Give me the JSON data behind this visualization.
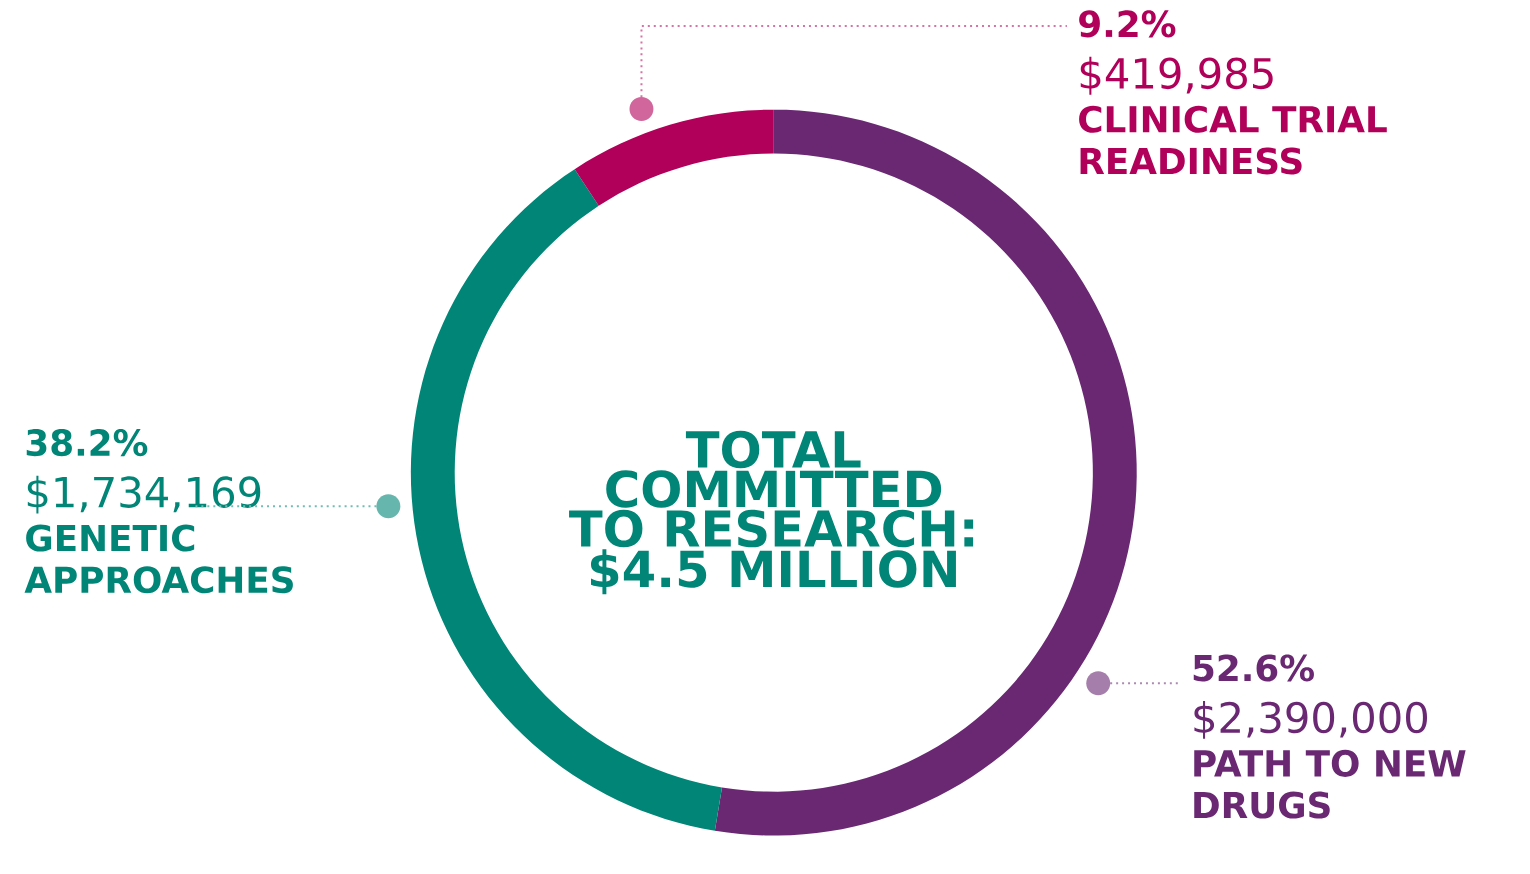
{
  "chart_data": {
    "type": "donut",
    "title": "TOTAL COMMITTED TO RESEARCH: $4.5 MILLION",
    "categories": [
      "PATH TO NEW DRUGS",
      "GENETIC APPROACHES",
      "CLINICAL TRIAL READINESS"
    ],
    "values": [
      2390000,
      1734169,
      419985
    ],
    "colors": [
      "#6a2873",
      "#008577",
      "#b0005a"
    ],
    "value_labels": [
      "$2,390,000",
      "$1,734,169",
      "$419,985"
    ],
    "annotations": [
      "52.6%",
      "38.2%",
      "9.2%"
    ]
  }
}
